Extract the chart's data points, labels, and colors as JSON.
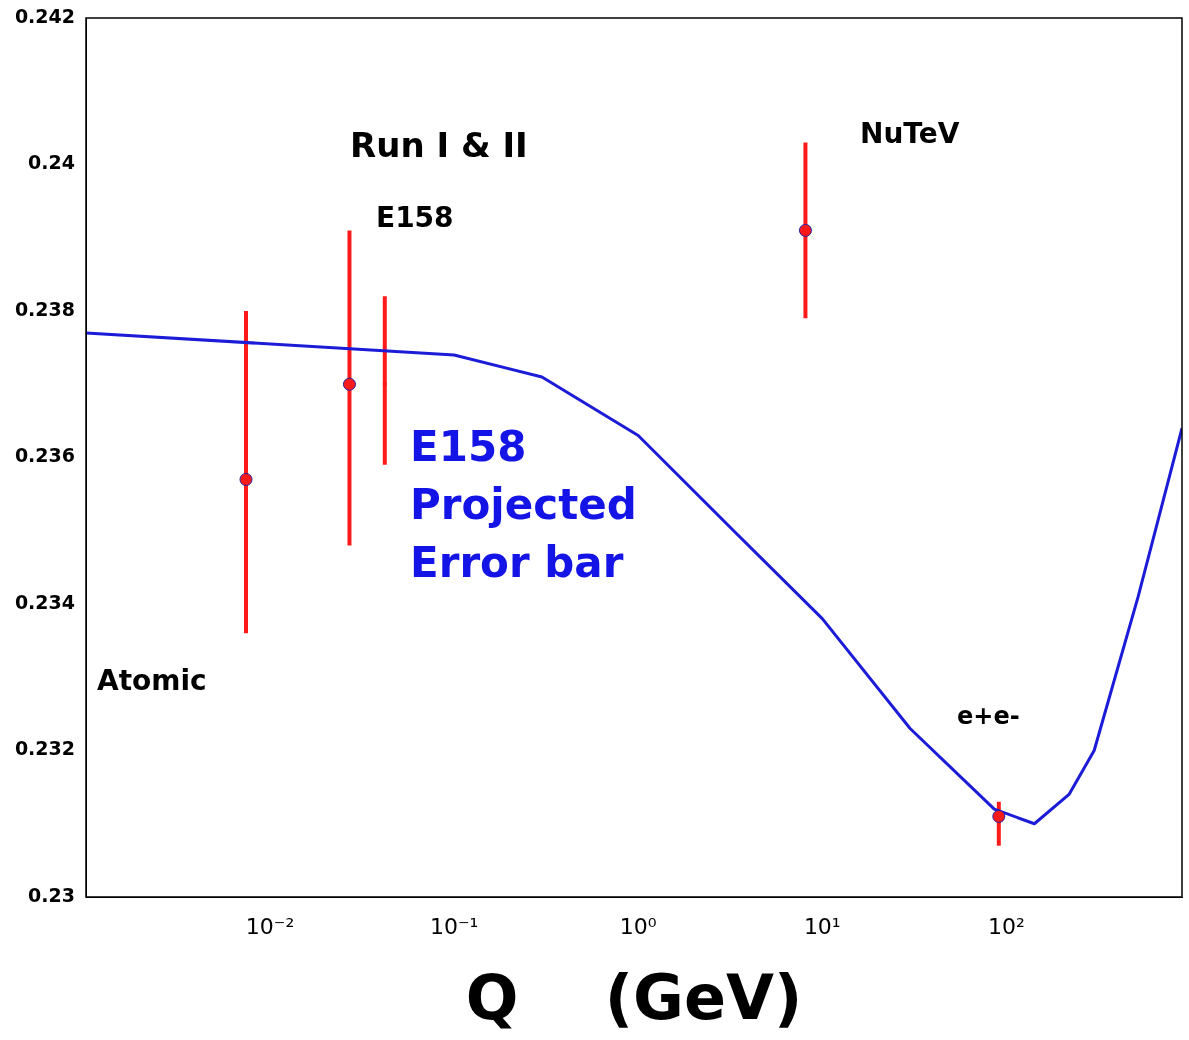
{
  "chart_data": {
    "type": "line",
    "log": "x",
    "xlabel": "Q    (GeV)",
    "xlim": [
      0.001,
      900
    ],
    "ylim": [
      0.23,
      0.242
    ],
    "xticks": [
      {
        "value": 0.01,
        "label": "10⁻²"
      },
      {
        "value": 0.1,
        "label": "10⁻¹"
      },
      {
        "value": 1,
        "label": "10⁰"
      },
      {
        "value": 10,
        "label": "10¹"
      },
      {
        "value": 100,
        "label": "10²"
      }
    ],
    "yticks": [
      0.23,
      0.232,
      0.234,
      0.236,
      0.238,
      0.24,
      0.242
    ],
    "grid": false,
    "legend": false,
    "series": [
      {
        "color": "#1c1cd8",
        "marker": "none",
        "x": [
          0.001,
          0.1,
          0.3,
          1,
          3.3,
          10,
          30,
          86,
          142,
          219,
          300,
          520,
          900
        ],
        "values": [
          0.2377,
          0.2374,
          0.2371,
          0.2363,
          0.235,
          0.2338,
          0.2323,
          0.2312,
          0.231,
          0.2314,
          0.232,
          0.2341,
          0.2364
        ]
      },
      {
        "type": "scatter",
        "color": "#ff1a1a",
        "marker": "circle",
        "x": [
          0.0074,
          0.027,
          8.1,
          91
        ],
        "values": [
          0.2357,
          0.237,
          0.2391,
          0.2311
        ],
        "errors": [
          [
            0.2336,
            0.238
          ],
          [
            0.2348,
            0.2391
          ],
          [
            0.2379,
            0.2403
          ],
          [
            0.2307,
            0.2313
          ]
        ]
      },
      {
        "type": "scatter",
        "color": "#ff1a1a",
        "marker": "square",
        "x": [
          0.042
        ],
        "values": [
          0.237
        ],
        "errors": [
          [
            0.2359,
            0.2382
          ]
        ]
      }
    ],
    "annotations": [
      "Run I & II",
      "E158",
      "NuTeV",
      "Atomic",
      "e+e-",
      "E158\nProjected\nError bar"
    ]
  }
}
